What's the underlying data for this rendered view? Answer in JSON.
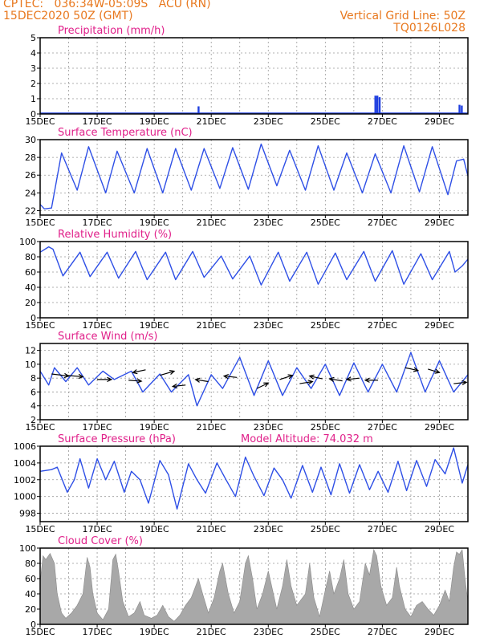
{
  "header": {
    "line1": "CPTEC:   036:34W-05:09S   ACU (RN)",
    "line2": "15DEC2020 50Z (GMT)",
    "grid_note": "Vertical Grid Line: 50Z",
    "code": "TQ0126L028"
  },
  "colors": {
    "header": "#e8781e",
    "title": "#e0208a",
    "line": "#2e4fe6",
    "bar": "#1f3fe0",
    "cloud": "#a8a8a8"
  },
  "x_ticks": [
    "15DEC",
    "17DEC",
    "19DEC",
    "21DEC",
    "23DEC",
    "25DEC",
    "27DEC",
    "29DEC"
  ],
  "chart_data": [
    {
      "type": "bar",
      "title": "Precipitation (mm/h)",
      "ylim": [
        0,
        5
      ],
      "yticks": [
        0,
        1,
        2,
        3,
        4,
        5
      ],
      "xlim": [
        0,
        15
      ],
      "x_ticks": [
        "15DEC",
        "17DEC",
        "19DEC",
        "21DEC",
        "23DEC",
        "25DEC",
        "27DEC",
        "29DEC"
      ],
      "points": [
        [
          5.55,
          0.5
        ],
        [
          11.75,
          1.2
        ],
        [
          11.82,
          1.2
        ],
        [
          11.9,
          1.1
        ],
        [
          14.7,
          0.6
        ],
        [
          14.78,
          0.55
        ]
      ]
    },
    {
      "type": "line",
      "title": "Surface Temperature (nC)",
      "ylim": [
        21.5,
        30
      ],
      "yticks": [
        22,
        24,
        26,
        28,
        30
      ],
      "xlim": [
        0,
        15
      ],
      "x_ticks": [
        "15DEC",
        "17DEC",
        "19DEC",
        "21DEC",
        "23DEC",
        "25DEC",
        "27DEC",
        "29DEC"
      ],
      "points": [
        [
          0,
          22.7
        ],
        [
          0.15,
          22.2
        ],
        [
          0.4,
          22.3
        ],
        [
          0.75,
          28.5
        ],
        [
          1.3,
          24.3
        ],
        [
          1.7,
          29.2
        ],
        [
          2.3,
          24
        ],
        [
          2.7,
          28.7
        ],
        [
          3.3,
          24
        ],
        [
          3.75,
          29
        ],
        [
          4.3,
          24
        ],
        [
          4.75,
          29
        ],
        [
          5.3,
          24.3
        ],
        [
          5.75,
          29
        ],
        [
          6.3,
          24.5
        ],
        [
          6.75,
          29.1
        ],
        [
          7.3,
          24.4
        ],
        [
          7.75,
          29.5
        ],
        [
          8.3,
          24.8
        ],
        [
          8.75,
          28.8
        ],
        [
          9.3,
          24.3
        ],
        [
          9.75,
          29.3
        ],
        [
          10.3,
          24.3
        ],
        [
          10.75,
          28.5
        ],
        [
          11.3,
          24
        ],
        [
          11.75,
          28.4
        ],
        [
          12.3,
          24
        ],
        [
          12.75,
          29.3
        ],
        [
          13.3,
          24.1
        ],
        [
          13.75,
          29.2
        ],
        [
          14.3,
          23.8
        ],
        [
          14.6,
          27.6
        ],
        [
          14.85,
          27.8
        ],
        [
          15,
          25.9
        ]
      ]
    },
    {
      "type": "line",
      "title": "Relative Humidity (%)",
      "ylim": [
        0,
        100
      ],
      "yticks": [
        0,
        20,
        40,
        60,
        80,
        100
      ],
      "xlim": [
        0,
        15
      ],
      "x_ticks": [
        "15DEC",
        "17DEC",
        "19DEC",
        "21DEC",
        "23DEC",
        "25DEC",
        "27DEC",
        "29DEC"
      ],
      "points": [
        [
          0,
          86
        ],
        [
          0.3,
          93
        ],
        [
          0.45,
          90
        ],
        [
          0.8,
          55
        ],
        [
          1.4,
          86
        ],
        [
          1.75,
          54
        ],
        [
          2.35,
          86
        ],
        [
          2.75,
          52
        ],
        [
          3.35,
          87
        ],
        [
          3.75,
          50
        ],
        [
          4.4,
          86
        ],
        [
          4.75,
          50
        ],
        [
          5.35,
          87
        ],
        [
          5.75,
          53
        ],
        [
          6.35,
          81
        ],
        [
          6.75,
          51
        ],
        [
          7.35,
          81
        ],
        [
          7.75,
          43
        ],
        [
          8.35,
          86
        ],
        [
          8.75,
          48
        ],
        [
          9.35,
          86
        ],
        [
          9.75,
          44
        ],
        [
          10.35,
          85
        ],
        [
          10.75,
          50
        ],
        [
          11.35,
          87
        ],
        [
          11.75,
          48
        ],
        [
          12.35,
          88
        ],
        [
          12.75,
          44
        ],
        [
          13.35,
          84
        ],
        [
          13.75,
          50
        ],
        [
          14.35,
          87
        ],
        [
          14.55,
          60
        ],
        [
          14.8,
          68
        ],
        [
          15,
          77
        ]
      ]
    },
    {
      "type": "line",
      "title": "Surface Wind (m/s)",
      "ylim": [
        2,
        13
      ],
      "yticks": [
        2,
        4,
        6,
        8,
        10,
        12
      ],
      "xlim": [
        0,
        15
      ],
      "x_ticks": [
        "15DEC",
        "17DEC",
        "19DEC",
        "21DEC",
        "23DEC",
        "25DEC",
        "27DEC",
        "29DEC"
      ],
      "points": [
        [
          0,
          9
        ],
        [
          0.3,
          7
        ],
        [
          0.5,
          9.5
        ],
        [
          0.9,
          7.5
        ],
        [
          1.3,
          9.5
        ],
        [
          1.7,
          7
        ],
        [
          2.2,
          9
        ],
        [
          2.6,
          7.8
        ],
        [
          3.2,
          9
        ],
        [
          3.6,
          6
        ],
        [
          4.2,
          8.6
        ],
        [
          4.6,
          6
        ],
        [
          5.2,
          8.5
        ],
        [
          5.5,
          4
        ],
        [
          6,
          8.5
        ],
        [
          6.4,
          6.5
        ],
        [
          7,
          11
        ],
        [
          7.5,
          5.5
        ],
        [
          8,
          10.5
        ],
        [
          8.5,
          5.5
        ],
        [
          9,
          9.5
        ],
        [
          9.5,
          6.5
        ],
        [
          10,
          10
        ],
        [
          10.5,
          5.5
        ],
        [
          11,
          10.2
        ],
        [
          11.5,
          6
        ],
        [
          12,
          10
        ],
        [
          12.5,
          6
        ],
        [
          13,
          11.7
        ],
        [
          13.5,
          6
        ],
        [
          14,
          10.5
        ],
        [
          14.5,
          6
        ],
        [
          15,
          8.5
        ]
      ],
      "arrows": [
        [
          0.4,
          8.6,
          0.6,
          -0.3
        ],
        [
          0.9,
          8.4,
          0.6,
          -0.2
        ],
        [
          2.0,
          7.8,
          0.5,
          0
        ],
        [
          3.1,
          7.7,
          0.45,
          -0.15
        ],
        [
          3.7,
          9.2,
          -0.45,
          -0.4
        ],
        [
          4.2,
          8.4,
          0.5,
          0.6
        ],
        [
          5.1,
          7.0,
          -0.45,
          -0.2
        ],
        [
          5.9,
          7.5,
          -0.45,
          0.3
        ],
        [
          6.9,
          8.1,
          -0.45,
          0.2
        ],
        [
          7.6,
          6.5,
          0.4,
          0.8
        ],
        [
          8.4,
          7.8,
          0.45,
          0.6
        ],
        [
          9.1,
          7.2,
          0.45,
          0.3
        ],
        [
          9.9,
          7.9,
          -0.45,
          0.4
        ],
        [
          10.6,
          7.6,
          -0.45,
          0.3
        ],
        [
          11.2,
          8.0,
          -0.45,
          -0.2
        ],
        [
          11.85,
          7.7,
          -0.45,
          0
        ],
        [
          12.8,
          9.5,
          0.45,
          -0.4
        ],
        [
          13.6,
          9.3,
          0.4,
          -0.5
        ],
        [
          14.5,
          7.2,
          0.45,
          0.2
        ]
      ]
    },
    {
      "type": "line",
      "title": "Surface Pressure (hPa)",
      "annotation": "Model Altitude: 74.032 m",
      "ylim": [
        997,
        1006
      ],
      "yticks": [
        998,
        1000,
        1002,
        1004,
        1006
      ],
      "xlim": [
        0,
        15
      ],
      "x_ticks": [
        "15DEC",
        "17DEC",
        "19DEC",
        "21DEC",
        "23DEC",
        "25DEC",
        "27DEC",
        "29DEC"
      ],
      "points": [
        [
          0,
          1003
        ],
        [
          0.4,
          1003.2
        ],
        [
          0.6,
          1003.5
        ],
        [
          0.95,
          1000.5
        ],
        [
          1.2,
          1002
        ],
        [
          1.4,
          1004.5
        ],
        [
          1.7,
          1001
        ],
        [
          2.0,
          1004.5
        ],
        [
          2.3,
          1002
        ],
        [
          2.6,
          1004.2
        ],
        [
          2.95,
          1000.5
        ],
        [
          3.2,
          1003
        ],
        [
          3.5,
          1002
        ],
        [
          3.8,
          999.2
        ],
        [
          4.2,
          1004.3
        ],
        [
          4.5,
          1002.6
        ],
        [
          4.8,
          998.5
        ],
        [
          5.2,
          1003.9
        ],
        [
          5.5,
          1002
        ],
        [
          5.8,
          1000.4
        ],
        [
          6.2,
          1004
        ],
        [
          6.5,
          1002.1
        ],
        [
          6.85,
          1000
        ],
        [
          7.2,
          1004.7
        ],
        [
          7.5,
          1002.4
        ],
        [
          7.85,
          1000.1
        ],
        [
          8.2,
          1003.4
        ],
        [
          8.5,
          1002
        ],
        [
          8.8,
          999.8
        ],
        [
          9.2,
          1003.7
        ],
        [
          9.55,
          1000.5
        ],
        [
          9.85,
          1003.5
        ],
        [
          10.2,
          1000.2
        ],
        [
          10.5,
          1003.9
        ],
        [
          10.85,
          1000.4
        ],
        [
          11.2,
          1003.8
        ],
        [
          11.55,
          1000.8
        ],
        [
          11.85,
          1003
        ],
        [
          12.2,
          1000.5
        ],
        [
          12.55,
          1004.2
        ],
        [
          12.85,
          1000.7
        ],
        [
          13.2,
          1004.3
        ],
        [
          13.55,
          1001.2
        ],
        [
          13.85,
          1004.4
        ],
        [
          14.2,
          1002.7
        ],
        [
          14.5,
          1005.8
        ],
        [
          14.8,
          1001.6
        ],
        [
          15,
          1003.8
        ]
      ]
    },
    {
      "type": "area",
      "title": "Cloud Cover (%)",
      "ylim": [
        0,
        100
      ],
      "yticks": [
        0,
        20,
        40,
        60,
        80,
        100
      ],
      "xlim": [
        0,
        15
      ],
      "x_ticks": [
        "15DEC",
        "17DEC",
        "19DEC",
        "21DEC",
        "23DEC",
        "25DEC",
        "27DEC",
        "29DEC"
      ],
      "points": [
        [
          0,
          55
        ],
        [
          0.1,
          90
        ],
        [
          0.2,
          85
        ],
        [
          0.35,
          93
        ],
        [
          0.5,
          80
        ],
        [
          0.6,
          40
        ],
        [
          0.75,
          15
        ],
        [
          0.9,
          8
        ],
        [
          1.1,
          15
        ],
        [
          1.3,
          25
        ],
        [
          1.5,
          40
        ],
        [
          1.65,
          88
        ],
        [
          1.75,
          75
        ],
        [
          1.85,
          40
        ],
        [
          2.0,
          15
        ],
        [
          2.2,
          6
        ],
        [
          2.4,
          20
        ],
        [
          2.55,
          85
        ],
        [
          2.65,
          92
        ],
        [
          2.75,
          70
        ],
        [
          2.9,
          30
        ],
        [
          3.1,
          10
        ],
        [
          3.3,
          15
        ],
        [
          3.5,
          30
        ],
        [
          3.65,
          12
        ],
        [
          3.9,
          8
        ],
        [
          4.1,
          12
        ],
        [
          4.3,
          25
        ],
        [
          4.5,
          10
        ],
        [
          4.7,
          4
        ],
        [
          4.9,
          12
        ],
        [
          5.1,
          25
        ],
        [
          5.3,
          35
        ],
        [
          5.45,
          50
        ],
        [
          5.55,
          60
        ],
        [
          5.7,
          40
        ],
        [
          5.9,
          15
        ],
        [
          6.1,
          35
        ],
        [
          6.3,
          70
        ],
        [
          6.4,
          80
        ],
        [
          6.6,
          40
        ],
        [
          6.8,
          15
        ],
        [
          7.0,
          30
        ],
        [
          7.2,
          80
        ],
        [
          7.3,
          90
        ],
        [
          7.45,
          60
        ],
        [
          7.6,
          20
        ],
        [
          7.8,
          40
        ],
        [
          8.0,
          70
        ],
        [
          8.15,
          45
        ],
        [
          8.3,
          20
        ],
        [
          8.5,
          50
        ],
        [
          8.65,
          85
        ],
        [
          8.8,
          50
        ],
        [
          9.0,
          25
        ],
        [
          9.3,
          40
        ],
        [
          9.45,
          80
        ],
        [
          9.6,
          35
        ],
        [
          9.8,
          10
        ],
        [
          10.0,
          45
        ],
        [
          10.15,
          70
        ],
        [
          10.3,
          40
        ],
        [
          10.5,
          60
        ],
        [
          10.65,
          85
        ],
        [
          10.8,
          40
        ],
        [
          11.0,
          20
        ],
        [
          11.2,
          30
        ],
        [
          11.4,
          80
        ],
        [
          11.55,
          65
        ],
        [
          11.7,
          98
        ],
        [
          11.8,
          90
        ],
        [
          11.95,
          50
        ],
        [
          12.15,
          25
        ],
        [
          12.35,
          35
        ],
        [
          12.5,
          75
        ],
        [
          12.6,
          50
        ],
        [
          12.8,
          20
        ],
        [
          13.0,
          10
        ],
        [
          13.2,
          25
        ],
        [
          13.4,
          30
        ],
        [
          13.6,
          20
        ],
        [
          13.8,
          12
        ],
        [
          14.0,
          25
        ],
        [
          14.2,
          45
        ],
        [
          14.35,
          30
        ],
        [
          14.5,
          75
        ],
        [
          14.6,
          95
        ],
        [
          14.7,
          92
        ],
        [
          14.8,
          98
        ],
        [
          14.9,
          60
        ],
        [
          15,
          30
        ]
      ]
    }
  ]
}
